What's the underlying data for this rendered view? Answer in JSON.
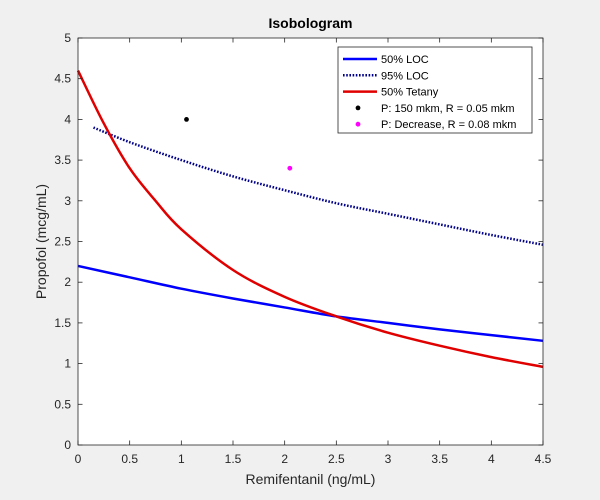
{
  "chart_data": {
    "type": "line",
    "title": "Isobologram",
    "xlabel": "Remifentanil (ng/mL)",
    "ylabel": "Propofol (mcg/mL)",
    "xlim": [
      0,
      4.5
    ],
    "ylim": [
      0,
      5
    ],
    "xticks": [
      "0",
      "0.5",
      "1",
      "1.5",
      "2",
      "2.5",
      "3",
      "3.5",
      "4",
      "4.5"
    ],
    "yticks": [
      "0",
      "0.5",
      "1",
      "1.5",
      "2",
      "2.5",
      "3",
      "3.5",
      "4",
      "4.5",
      "5"
    ],
    "grid": false,
    "legend_position": "top-right",
    "series": [
      {
        "name": "50% LOC",
        "color": "#0000ff",
        "style": "solid",
        "x": [
          0,
          0.5,
          1.0,
          1.5,
          2.0,
          2.5,
          3.0,
          3.5,
          4.0,
          4.5
        ],
        "y": [
          2.2,
          2.06,
          1.92,
          1.8,
          1.69,
          1.58,
          1.5,
          1.42,
          1.35,
          1.28
        ]
      },
      {
        "name": "95% LOC",
        "color": "#00008b",
        "style": "dotted",
        "x": [
          0.15,
          0.5,
          1.0,
          1.5,
          2.0,
          2.5,
          3.0,
          3.5,
          4.0,
          4.5
        ],
        "y": [
          3.9,
          3.72,
          3.5,
          3.3,
          3.13,
          2.97,
          2.84,
          2.71,
          2.58,
          2.46
        ]
      },
      {
        "name": "50% Tetany",
        "color": "#e00000",
        "style": "solid",
        "x": [
          0,
          0.25,
          0.5,
          0.75,
          1.0,
          1.5,
          2.0,
          2.5,
          3.0,
          3.5,
          4.0,
          4.5
        ],
        "y": [
          4.6,
          3.95,
          3.4,
          3.0,
          2.65,
          2.15,
          1.82,
          1.58,
          1.38,
          1.22,
          1.08,
          0.96
        ]
      }
    ],
    "points": [
      {
        "name": "P: 150 mkm, R = 0.05 mkm",
        "color": "#000000",
        "x": 1.05,
        "y": 4.0
      },
      {
        "name": "P: Decrease, R = 0.08 mkm",
        "color": "#ff00ff",
        "x": 2.05,
        "y": 3.4
      }
    ]
  }
}
